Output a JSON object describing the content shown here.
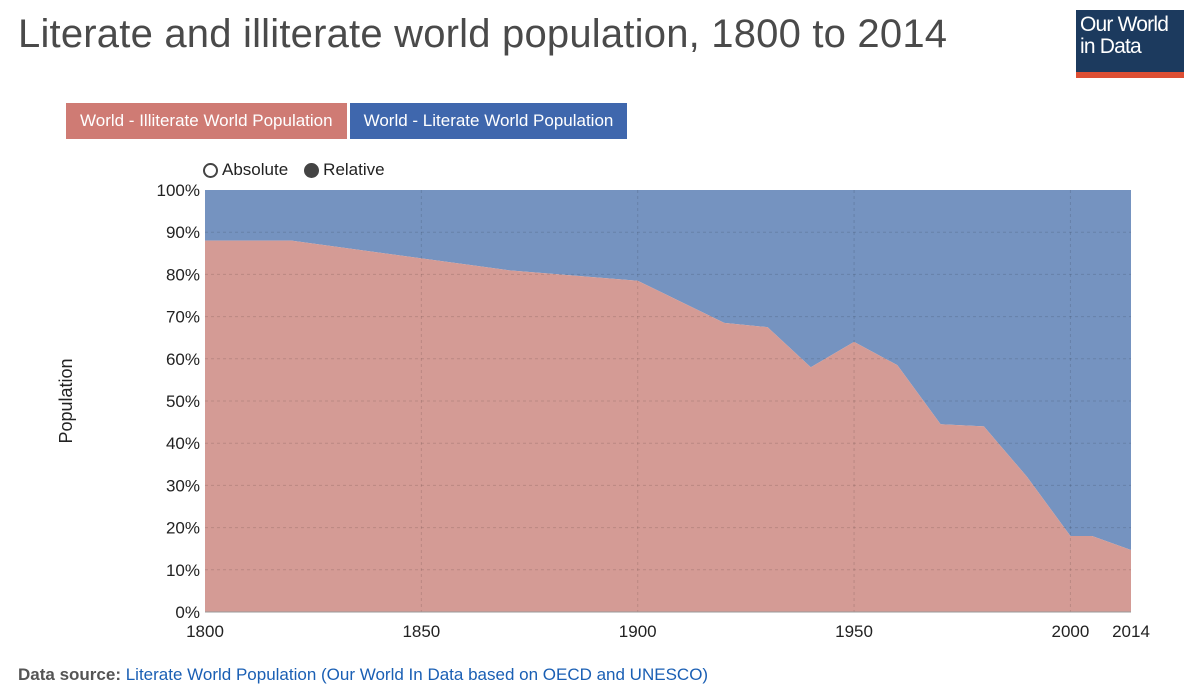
{
  "header": {
    "title": "Literate and illiterate world population, 1800 to 2014",
    "logo_line1": "Our World",
    "logo_line2": "in Data"
  },
  "toggles": {
    "absolute_label": "Absolute",
    "relative_label": "Relative",
    "selected": "Relative"
  },
  "source": {
    "label": "Data source:",
    "link_text": "Literate World Population (Our World In Data based on OECD and UNESCO)"
  },
  "colors": {
    "illiterate": "#d49b95",
    "literate": "#7593c0",
    "legend_illiterate": "#cf7b74",
    "legend_literate": "#3f67ad"
  },
  "chart_data": {
    "type": "area",
    "stacked": true,
    "ylabel": "Population",
    "xlim": [
      1800,
      2014
    ],
    "ylim": [
      0,
      100
    ],
    "yticks": [
      "0%",
      "10%",
      "20%",
      "30%",
      "40%",
      "50%",
      "60%",
      "70%",
      "80%",
      "90%",
      "100%"
    ],
    "xticks": [
      1800,
      1850,
      1900,
      1950,
      2000,
      2014
    ],
    "grid": true,
    "legend_position": "top-left",
    "x": [
      1800,
      1820,
      1870,
      1900,
      1920,
      1930,
      1940,
      1950,
      1960,
      1970,
      1980,
      1990,
      2000,
      2005,
      2014
    ],
    "series": [
      {
        "name": "World - Illiterate World Population",
        "values": [
          88,
          88,
          81,
          78.5,
          68.5,
          67.5,
          58,
          64,
          58.5,
          44.5,
          44,
          32,
          18,
          18,
          14.7
        ]
      },
      {
        "name": "World - Literate World Population",
        "values": [
          12,
          12,
          19,
          21.5,
          31.5,
          32.5,
          42,
          36,
          41.5,
          55.5,
          56,
          68,
          82,
          82,
          85.3
        ]
      }
    ]
  }
}
